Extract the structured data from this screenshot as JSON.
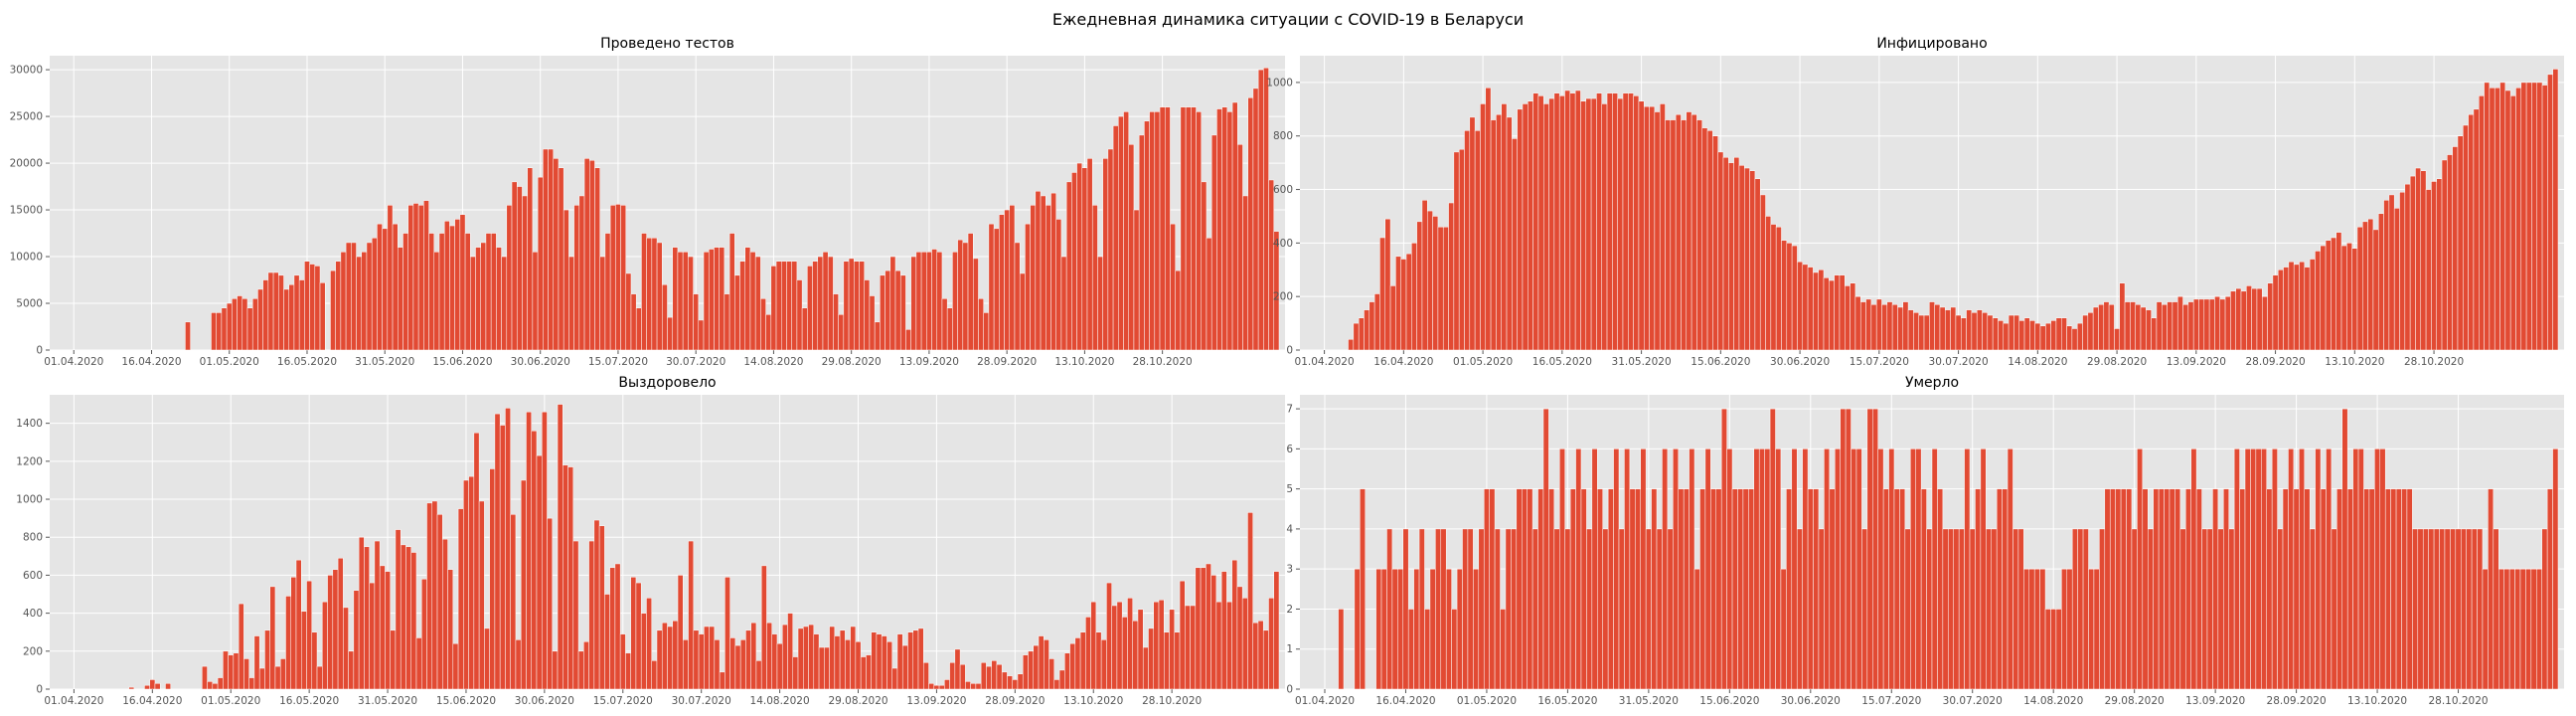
{
  "figure": {
    "title": "Ежедневная динамика ситуации с COVID-19 в Беларуси"
  },
  "chart_data": [
    {
      "type": "bar",
      "title": "Проведено тестов",
      "x_ticks": [
        "01.04.2020",
        "16.04.2020",
        "01.05.2020",
        "16.05.2020",
        "31.05.2020",
        "15.06.2020",
        "30.06.2020",
        "15.07.2020",
        "30.07.2020",
        "14.08.2020",
        "29.08.2020",
        "13.09.2020",
        "28.09.2020",
        "13.10.2020",
        "28.10.2020"
      ],
      "y_ticks": [
        0,
        5000,
        10000,
        15000,
        20000,
        25000,
        30000
      ],
      "ylim": [
        0,
        31500
      ],
      "grid": true,
      "values": [
        0,
        0,
        0,
        0,
        0,
        0,
        0,
        0,
        0,
        0,
        0,
        0,
        0,
        0,
        0,
        0,
        0,
        0,
        0,
        0,
        0,
        0,
        0,
        0,
        0,
        3000,
        0,
        0,
        0,
        0,
        4000,
        4000,
        4500,
        5000,
        5500,
        5800,
        5500,
        4500,
        5500,
        6500,
        7500,
        8300,
        8300,
        8000,
        6500,
        7000,
        8000,
        7500,
        9500,
        9200,
        9000,
        7200,
        0,
        8500,
        9500,
        10500,
        11500,
        11500,
        10000,
        10500,
        11500,
        12000,
        13500,
        13000,
        15500,
        13500,
        11000,
        12500,
        15500,
        15700,
        15500,
        16000,
        12500,
        10500,
        12500,
        13800,
        13300,
        14000,
        14500,
        12500,
        10000,
        11000,
        11500,
        12500,
        12500,
        11000,
        10000,
        15500,
        18000,
        17500,
        16500,
        19500,
        10500,
        18500,
        21500,
        21500,
        20500,
        19500,
        15000,
        10000,
        15500,
        16500,
        20500,
        20300,
        19500,
        10000,
        12500,
        15500,
        15600,
        15500,
        8200,
        6000,
        4500,
        12500,
        12000,
        12000,
        11500,
        7000,
        3500,
        11000,
        10500,
        10500,
        10000,
        6000,
        3200,
        10500,
        10800,
        11000,
        11000,
        6000,
        12500,
        8000,
        9500,
        11000,
        10500,
        10000,
        5500,
        3800,
        9000,
        9500,
        9500,
        9500,
        9500,
        7500,
        4500,
        9000,
        9500,
        10000,
        10500,
        10000,
        6000,
        3800,
        9500,
        9800,
        9500,
        9500,
        7500,
        5800,
        3000,
        8000,
        8500,
        10000,
        8500,
        8000,
        2200,
        10000,
        10500,
        10500,
        10500,
        10800,
        10500,
        5500,
        4500,
        10500,
        11800,
        11500,
        12500,
        9800,
        5500,
        4000,
        13500,
        13000,
        14500,
        15000,
        15500,
        11500,
        8200,
        13500,
        15500,
        17000,
        16500,
        15500,
        16800,
        14000,
        10000,
        18000,
        19000,
        20000,
        19500,
        20500,
        15500,
        10000,
        20500,
        21500,
        24000,
        25000,
        25500,
        22000,
        15000,
        23000,
        24500,
        25500,
        25500,
        26000,
        26000,
        13500,
        8500,
        26000,
        26000,
        26000,
        25500,
        18000,
        12000,
        23000,
        25800,
        26000,
        25500,
        26500,
        22000,
        16500,
        27000,
        28000,
        30000,
        30200,
        18200,
        12700
      ]
    },
    {
      "type": "bar",
      "title": "Инфицировано",
      "x_ticks": [
        "01.04.2020",
        "16.04.2020",
        "01.05.2020",
        "16.05.2020",
        "31.05.2020",
        "15.06.2020",
        "30.06.2020",
        "15.07.2020",
        "30.07.2020",
        "14.08.2020",
        "29.08.2020",
        "13.09.2020",
        "28.09.2020",
        "13.10.2020",
        "28.10.2020"
      ],
      "y_ticks": [
        0,
        200,
        400,
        600,
        800,
        1000
      ],
      "ylim": [
        0,
        1100
      ],
      "grid": true,
      "values": [
        0,
        0,
        0,
        0,
        0,
        0,
        0,
        0,
        40,
        100,
        120,
        150,
        180,
        210,
        420,
        490,
        240,
        350,
        340,
        360,
        400,
        480,
        560,
        520,
        500,
        460,
        460,
        550,
        740,
        750,
        820,
        870,
        820,
        920,
        980,
        860,
        880,
        920,
        870,
        790,
        900,
        920,
        930,
        960,
        950,
        920,
        940,
        960,
        950,
        970,
        960,
        970,
        930,
        940,
        940,
        960,
        920,
        960,
        960,
        940,
        960,
        960,
        950,
        930,
        910,
        910,
        890,
        920,
        860,
        860,
        880,
        860,
        890,
        880,
        860,
        830,
        820,
        800,
        740,
        720,
        700,
        720,
        690,
        680,
        670,
        640,
        580,
        500,
        470,
        460,
        410,
        400,
        390,
        330,
        320,
        310,
        290,
        300,
        270,
        260,
        280,
        280,
        240,
        250,
        200,
        180,
        190,
        170,
        190,
        170,
        180,
        170,
        160,
        180,
        150,
        140,
        130,
        130,
        180,
        170,
        160,
        150,
        160,
        130,
        120,
        150,
        140,
        150,
        140,
        130,
        120,
        110,
        100,
        130,
        130,
        110,
        120,
        110,
        100,
        90,
        100,
        110,
        120,
        120,
        90,
        80,
        100,
        130,
        140,
        160,
        170,
        180,
        170,
        80,
        250,
        180,
        180,
        170,
        160,
        150,
        120,
        180,
        170,
        180,
        180,
        200,
        170,
        180,
        190,
        190,
        190,
        190,
        200,
        190,
        200,
        220,
        230,
        220,
        240,
        230,
        230,
        200,
        250,
        280,
        300,
        310,
        330,
        320,
        330,
        310,
        340,
        370,
        390,
        410,
        420,
        440,
        390,
        400,
        380,
        460,
        480,
        490,
        450,
        510,
        560,
        580,
        530,
        590,
        620,
        650,
        680,
        670,
        600,
        630,
        640,
        710,
        730,
        760,
        800,
        840,
        880,
        900,
        950,
        1000,
        980,
        980,
        1000,
        970,
        950,
        980,
        1000,
        1000,
        1000,
        1000,
        990,
        1030,
        1050
      ]
    },
    {
      "type": "bar",
      "title": "Выздоровело",
      "x_ticks": [
        "01.04.2020",
        "16.04.2020",
        "01.05.2020",
        "16.05.2020",
        "31.05.2020",
        "15.06.2020",
        "30.06.2020",
        "15.07.2020",
        "30.07.2020",
        "14.08.2020",
        "29.08.2020",
        "13.09.2020",
        "28.09.2020",
        "13.10.2020",
        "28.10.2020"
      ],
      "y_ticks": [
        0,
        200,
        400,
        600,
        800,
        1000,
        1200,
        1400
      ],
      "ylim": [
        0,
        1550
      ],
      "grid": true,
      "values": [
        0,
        0,
        0,
        0,
        0,
        0,
        0,
        0,
        0,
        0,
        0,
        0,
        0,
        0,
        10,
        0,
        0,
        20,
        50,
        30,
        0,
        30,
        0,
        0,
        0,
        0,
        0,
        0,
        120,
        40,
        30,
        60,
        200,
        180,
        190,
        450,
        160,
        60,
        280,
        110,
        310,
        540,
        120,
        160,
        490,
        590,
        680,
        410,
        570,
        300,
        120,
        460,
        600,
        630,
        690,
        430,
        200,
        520,
        800,
        750,
        560,
        780,
        650,
        620,
        310,
        840,
        760,
        750,
        720,
        270,
        580,
        980,
        990,
        920,
        790,
        630,
        240,
        950,
        1100,
        1120,
        1350,
        990,
        320,
        1160,
        1450,
        1390,
        1480,
        920,
        260,
        1100,
        1460,
        1360,
        1230,
        1460,
        900,
        200,
        1500,
        1180,
        1170,
        780,
        200,
        250,
        780,
        890,
        860,
        500,
        640,
        660,
        290,
        190,
        590,
        560,
        400,
        480,
        150,
        310,
        350,
        330,
        360,
        600,
        260,
        780,
        310,
        290,
        330,
        330,
        260,
        90,
        590,
        270,
        230,
        260,
        310,
        350,
        150,
        650,
        350,
        290,
        240,
        340,
        400,
        170,
        320,
        330,
        340,
        290,
        220,
        220,
        330,
        280,
        310,
        260,
        330,
        250,
        170,
        180,
        300,
        290,
        280,
        250,
        110,
        290,
        230,
        300,
        310,
        320,
        140,
        30,
        20,
        20,
        50,
        140,
        210,
        130,
        40,
        30,
        30,
        140,
        120,
        150,
        130,
        90,
        70,
        50,
        80,
        180,
        200,
        230,
        280,
        260,
        160,
        50,
        100,
        190,
        240,
        270,
        300,
        380,
        460,
        300,
        260,
        560,
        440,
        460,
        380,
        480,
        360,
        420,
        220,
        320,
        460,
        470,
        300,
        420,
        300,
        570,
        440,
        440,
        640,
        640,
        660,
        600,
        460,
        620,
        460,
        680,
        540,
        480,
        930,
        350,
        360,
        310,
        480,
        620
      ]
    },
    {
      "type": "bar",
      "title": "Умерло",
      "x_ticks": [
        "01.04.2020",
        "16.04.2020",
        "01.05.2020",
        "16.05.2020",
        "31.05.2020",
        "15.06.2020",
        "30.06.2020",
        "15.07.2020",
        "30.07.2020",
        "14.08.2020",
        "29.08.2020",
        "13.09.2020",
        "28.09.2020",
        "13.10.2020",
        "28.10.2020"
      ],
      "y_ticks": [
        0,
        1,
        2,
        3,
        4,
        5,
        6,
        7
      ],
      "ylim": [
        0,
        7.35
      ],
      "grid": true,
      "values": [
        0,
        0,
        0,
        0,
        0,
        0,
        2,
        0,
        0,
        3,
        5,
        0,
        0,
        3,
        3,
        4,
        3,
        3,
        4,
        2,
        3,
        4,
        2,
        3,
        4,
        4,
        3,
        2,
        3,
        4,
        4,
        3,
        4,
        5,
        5,
        4,
        2,
        4,
        4,
        5,
        5,
        5,
        4,
        5,
        7,
        5,
        4,
        6,
        4,
        5,
        6,
        5,
        4,
        6,
        5,
        4,
        5,
        6,
        4,
        6,
        5,
        5,
        6,
        4,
        5,
        4,
        6,
        4,
        6,
        5,
        5,
        6,
        3,
        5,
        6,
        5,
        5,
        7,
        6,
        5,
        5,
        5,
        5,
        6,
        6,
        6,
        7,
        6,
        3,
        5,
        6,
        4,
        6,
        5,
        5,
        4,
        6,
        5,
        6,
        7,
        7,
        6,
        6,
        4,
        7,
        7,
        6,
        5,
        6,
        5,
        5,
        4,
        6,
        6,
        5,
        4,
        6,
        5,
        4,
        4,
        4,
        4,
        6,
        4,
        5,
        6,
        4,
        4,
        5,
        5,
        6,
        4,
        4,
        3,
        3,
        3,
        3,
        2,
        2,
        2,
        3,
        3,
        4,
        4,
        4,
        3,
        3,
        4,
        5,
        5,
        5,
        5,
        5,
        4,
        6,
        5,
        4,
        5,
        5,
        5,
        5,
        5,
        4,
        5,
        6,
        5,
        4,
        4,
        5,
        4,
        5,
        4,
        6,
        5,
        6,
        6,
        6,
        6,
        5,
        6,
        4,
        5,
        6,
        5,
        6,
        5,
        4,
        6,
        5,
        6,
        4,
        5,
        7,
        5,
        6,
        6,
        5,
        5,
        6,
        6,
        5,
        5,
        5,
        5,
        5,
        4,
        4,
        4,
        4,
        4,
        4,
        4,
        4,
        4,
        4,
        4,
        4,
        4,
        3,
        5,
        4,
        3,
        3,
        3,
        3,
        3,
        3,
        3,
        3,
        4,
        5,
        6
      ]
    }
  ]
}
